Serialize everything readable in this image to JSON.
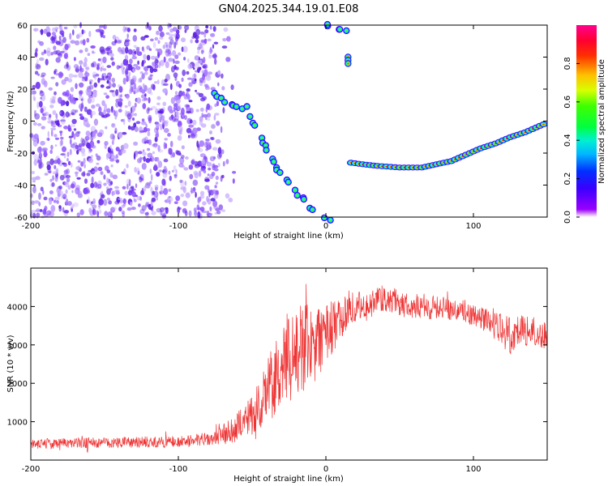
{
  "title": "GN04.2025.344.19.01.E08",
  "chart_data": [
    {
      "type": "heatmap",
      "title": "GN04.2025.344.19.01.E08",
      "xlabel": "Height of straight line (km)",
      "ylabel": "Frequency (Hz)",
      "xlim": [
        -200,
        150
      ],
      "ylim": [
        -60,
        60
      ],
      "x_ticks": [
        -200,
        -100,
        0,
        100
      ],
      "y_ticks": [
        -60,
        -40,
        -20,
        0,
        20,
        40,
        60
      ],
      "colorbar": {
        "label": "Normalized spectral amplitude",
        "range": [
          0,
          1
        ],
        "ticks": [
          "0.0",
          "0.2",
          "0.4",
          "0.6",
          "0.8"
        ],
        "colormap": "rainbow"
      },
      "clutter": {
        "x_range": [
          -200,
          -60
        ],
        "y_range": [
          -60,
          60
        ],
        "density_ramp_start": -80,
        "level": "low"
      },
      "features": [
        {
          "name": "rising-echo-trace",
          "level": "medium",
          "points": [
            [
              -75,
              18
            ],
            [
              -70,
              13
            ],
            [
              -62,
              10
            ],
            [
              -55,
              8
            ],
            [
              -50,
              2
            ],
            [
              -45,
              -8
            ],
            [
              -40,
              -18
            ],
            [
              -35,
              -28
            ],
            [
              -30,
              -32
            ],
            [
              -25,
              -38
            ],
            [
              -20,
              -44
            ],
            [
              -15,
              -50
            ],
            [
              -10,
              -54
            ],
            [
              -5,
              -58
            ],
            [
              0,
              -61
            ],
            [
              5,
              -62
            ]
          ]
        },
        {
          "name": "upper-echo",
          "level": "medium",
          "points": [
            [
              0,
              60
            ],
            [
              5,
              59
            ],
            [
              10,
              57
            ],
            [
              15,
              55
            ]
          ]
        },
        {
          "name": "isolated-echo",
          "level": "high",
          "points": [
            [
              15,
              38
            ]
          ]
        },
        {
          "name": "doppler-trace",
          "level": "high",
          "points": [
            [
              17,
              -26
            ],
            [
              25,
              -27
            ],
            [
              35,
              -28
            ],
            [
              50,
              -29
            ],
            [
              65,
              -29
            ],
            [
              75,
              -27
            ],
            [
              85,
              -25
            ],
            [
              95,
              -21
            ],
            [
              105,
              -17
            ],
            [
              115,
              -14
            ],
            [
              125,
              -10
            ],
            [
              135,
              -7
            ],
            [
              145,
              -3
            ],
            [
              150,
              -1
            ]
          ]
        }
      ]
    },
    {
      "type": "line",
      "xlabel": "Height of straight line (km)",
      "ylabel": "SNR (10 * v/v)",
      "xlim": [
        -200,
        150
      ],
      "ylim": [
        0,
        5000
      ],
      "x_ticks": [
        -200,
        -100,
        0,
        100
      ],
      "y_ticks": [
        1000,
        2000,
        3000,
        4000
      ],
      "series": [
        {
          "name": "SNR",
          "color": "#ee3333",
          "envelope": {
            "x": [
              -200,
              -150,
              -100,
              -75,
              -60,
              -50,
              -40,
              -35,
              -25,
              -15,
              -5,
              5,
              15,
              25,
              35,
              45,
              60,
              75,
              90,
              100,
              110,
              120,
              125,
              130,
              140,
              150
            ],
            "center": [
              420,
              460,
              480,
              560,
              850,
              1200,
              1700,
              2200,
              2700,
              2900,
              3100,
              3500,
              3900,
              4050,
              4200,
              4150,
              4000,
              4000,
              3950,
              3800,
              3600,
              3400,
              3200,
              3400,
              3350,
              3250
            ],
            "spread": [
              130,
              140,
              150,
              180,
              400,
              550,
              800,
              1100,
              1200,
              1200,
              1000,
              700,
              450,
              350,
              350,
              350,
              350,
              320,
              320,
              320,
              350,
              400,
              500,
              420,
              400,
              350
            ]
          }
        }
      ]
    }
  ]
}
